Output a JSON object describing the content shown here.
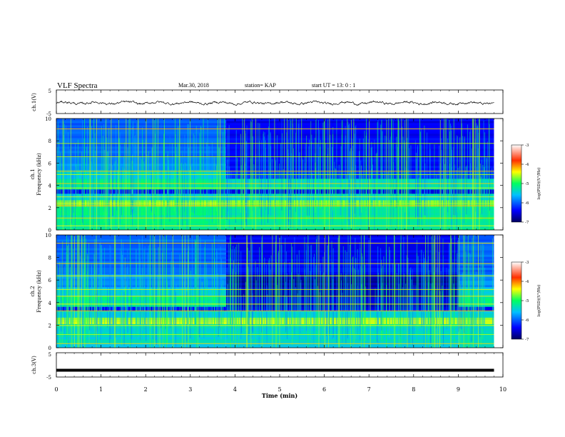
{
  "header": {
    "title": "VLF Spectra",
    "date": "Mar.30, 2018",
    "station": "station= KAP",
    "start": "start  UT =   13: 0  : 1"
  },
  "chart_data": [
    {
      "type": "line",
      "panel": "ch1-waveform",
      "ylabel": "ch.1(V)",
      "ylim": [
        -5,
        5
      ],
      "yticks": [
        "5",
        "-5"
      ],
      "xlim": [
        0,
        10
      ],
      "description_values": "noisy waveform oscillating mostly between about -2 and +1 V",
      "y_level": -0.5
    },
    {
      "type": "heatmap",
      "panel": "ch1-spectrogram",
      "ylabel": "ch.1",
      "ylabel2": "Frequency (kHz)",
      "ylim": [
        0,
        10
      ],
      "yticks": [
        "0",
        "2",
        "4",
        "6",
        "8",
        "10"
      ],
      "xlim": [
        0,
        10
      ],
      "colorbar": {
        "label": "log(PSD)(V²/Hz)",
        "ticks": [
          "-3",
          "-4",
          "-5",
          "-6",
          "-7"
        ],
        "range": [
          -7,
          -3
        ]
      },
      "band_edge_change_minutes": 3.8
    },
    {
      "type": "heatmap",
      "panel": "ch2-spectrogram",
      "ylabel": "ch.2",
      "ylabel2": "Frequency (kHz)",
      "ylim": [
        0,
        10
      ],
      "yticks": [
        "0",
        "2",
        "4",
        "6",
        "8",
        "10"
      ],
      "xlim": [
        0,
        10
      ],
      "colorbar": {
        "label": "log(PSD)(V²/Hz)",
        "ticks": [
          "-3",
          "-4",
          "-5",
          "-6",
          "-7"
        ],
        "range": [
          -7,
          -3
        ]
      },
      "band_edge_change_minutes": [
        3.8,
        9.0
      ]
    },
    {
      "type": "line",
      "panel": "ch3-waveform",
      "ylabel": "ch.3(V)",
      "ylim": [
        -5,
        5
      ],
      "yticks": [
        "5",
        "-5"
      ],
      "xlim": [
        0,
        10
      ],
      "y_level": -2.2
    }
  ],
  "xaxis": {
    "label": "Time (min)",
    "ticks": [
      "0",
      "1",
      "2",
      "3",
      "4",
      "5",
      "6",
      "7",
      "8",
      "9",
      "10"
    ]
  },
  "colors": {
    "axis": "#000000",
    "trace": "#000000"
  }
}
